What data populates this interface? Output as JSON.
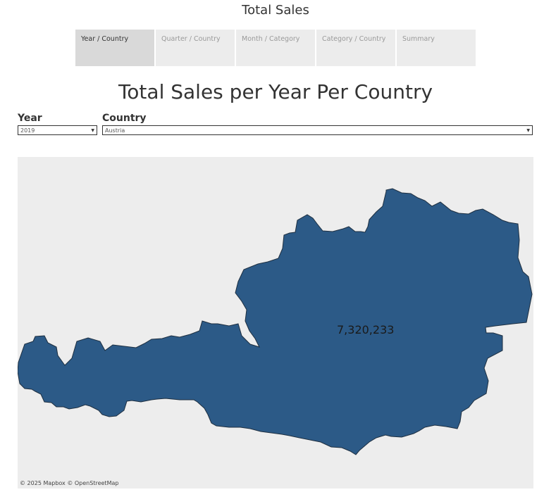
{
  "dashboard": {
    "title": "Total Sales"
  },
  "tabs": [
    {
      "label": "Year / Country",
      "active": true
    },
    {
      "label": "Quarter / Country",
      "active": false
    },
    {
      "label": "Month / Category",
      "active": false
    },
    {
      "label": "Category / Country",
      "active": false
    },
    {
      "label": "Summary",
      "active": false
    }
  ],
  "sheet": {
    "title": "Total Sales per Year Per Country"
  },
  "filters": {
    "year": {
      "label": "Year",
      "value": "2019"
    },
    "country": {
      "label": "Country",
      "value": "Austria"
    }
  },
  "map": {
    "region": "Austria",
    "value_label": "7,320,233",
    "fill_color": "#2c5a87",
    "background_color": "#ededed",
    "attribution_mapbox": "© 2025 Mapbox",
    "attribution_osm": "© OpenStreetMap"
  }
}
